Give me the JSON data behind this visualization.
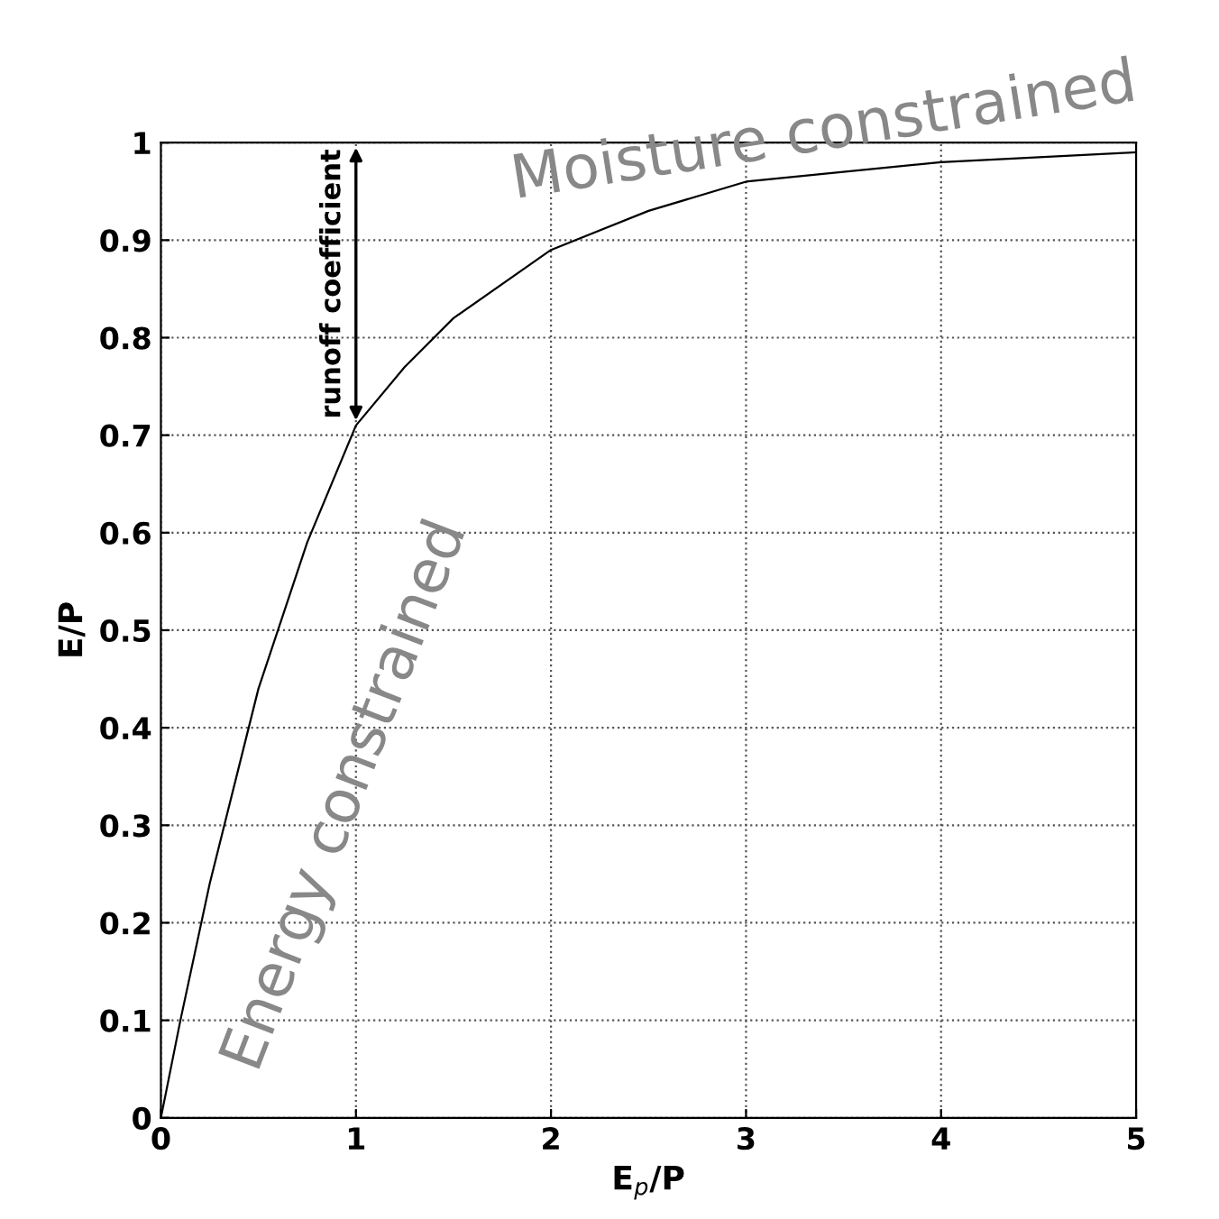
{
  "chart_data": {
    "type": "line",
    "x": [
      0,
      0.1,
      0.25,
      0.5,
      0.75,
      1,
      1.25,
      1.5,
      2,
      2.5,
      3,
      4,
      5
    ],
    "series": [
      {
        "color": "#000000",
        "values": [
          0,
          0.1,
          0.24,
          0.44,
          0.59,
          0.71,
          0.77,
          0.82,
          0.89,
          0.93,
          0.96,
          0.98,
          0.99
        ]
      }
    ],
    "xlim": [
      0,
      5
    ],
    "ylim": [
      0,
      1
    ],
    "xticks": [
      0,
      1,
      2,
      3,
      4,
      5
    ],
    "yticks": [
      0,
      0.1,
      0.2,
      0.3,
      0.4,
      0.5,
      0.6,
      0.7,
      0.8,
      0.9,
      1
    ],
    "xlabel": "E$_{p}$/P",
    "ylabel": "E/P",
    "grid": true,
    "marker": "none",
    "line_style": "solid",
    "annotations": [
      {
        "text": "runoff coefficient",
        "x": 1,
        "y": 0.71
      },
      "Moisture constrained",
      "Energy constrained"
    ]
  }
}
